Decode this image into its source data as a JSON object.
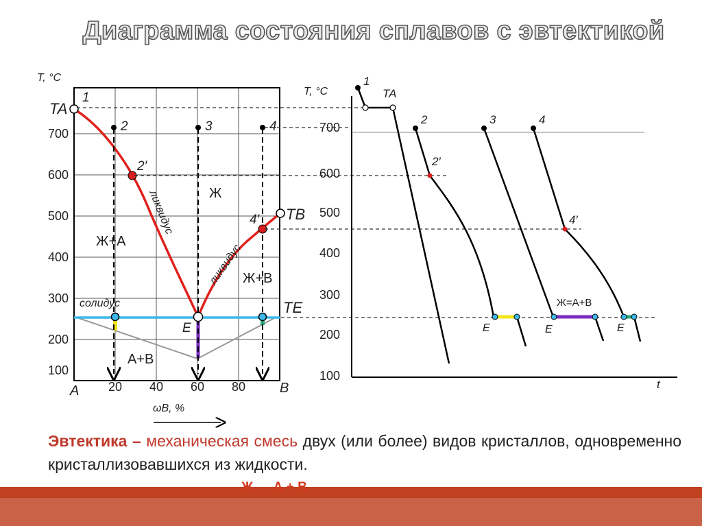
{
  "title": "Диаграмма состояния сплавов с эвтектикой",
  "phase_diagram": {
    "y_axis_label": "T, °C",
    "y_ticks": [
      "700",
      "600",
      "500",
      "400",
      "300",
      "200",
      "100"
    ],
    "x_ticks": [
      "20",
      "40",
      "60",
      "80"
    ],
    "x_end_labels": {
      "left": "A",
      "right": "B"
    },
    "x_axis_label": "ωB, %",
    "temp_labels": {
      "ta": "TA",
      "tb": "TB",
      "te": "TE"
    },
    "point_labels": {
      "p1": "1",
      "p2": "2",
      "p3": "3",
      "p4": "4",
      "p2s": "2′",
      "p4s": "4′",
      "e": "E"
    },
    "region_labels": {
      "liquid": "Ж",
      "liquid_a": "Ж+А",
      "liquid_b": "Ж+В",
      "solid": "А+В"
    },
    "line_labels": {
      "liquidus_left": "ликвидус",
      "liquidus_right": "ликвидус",
      "solidus": "солидус"
    },
    "colors": {
      "liquidus": "#e0201b",
      "solidus": "#3db8e8",
      "eutectic_violet": "#7a2bbf",
      "point_red": "#d81e1e"
    }
  },
  "cooling_curves": {
    "y_axis_label": "T, °C",
    "y_ticks": [
      "700",
      "600",
      "500",
      "400",
      "300",
      "200",
      "100"
    ],
    "x_axis_label": "t",
    "labels": {
      "c1": "1",
      "ta": "TA",
      "c2": "2",
      "c3": "3",
      "c4": "4",
      "c2s": "2′",
      "c4s": "4′",
      "eutectic_reaction": "Ж=А+В"
    },
    "e_labels": [
      "E",
      "E",
      "E"
    ],
    "plateau_colors": [
      "#f2e61a",
      "#7a2bbf",
      "#2aa876"
    ]
  },
  "caption": {
    "term": "Эвтектика",
    "dash": "–",
    "definition": "механическая смесь",
    "rest": " двух (или более) видов кристаллов, одновременно кристаллизовавшихся из жидкости."
  },
  "reaction": "Ж → А + В"
}
